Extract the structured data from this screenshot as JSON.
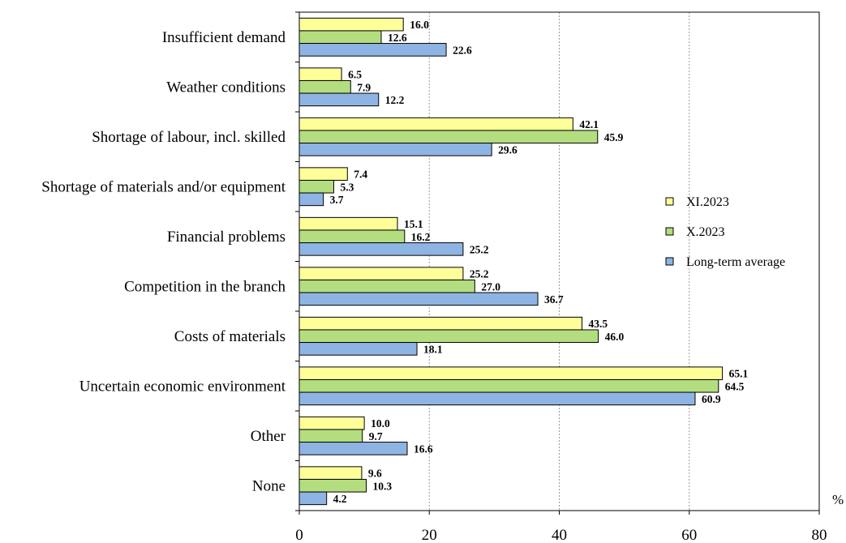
{
  "chart_data": {
    "type": "bar",
    "orientation": "horizontal",
    "categories": [
      "Insufficient demand",
      "Weather conditions",
      "Shortage of labour, incl. skilled",
      "Shortage of materials and/or equipment",
      "Financial problems",
      "Competition in the branch",
      "Costs of materials",
      "Uncertain economic environment",
      "Other",
      "None"
    ],
    "series": [
      {
        "name": "XI.2023",
        "color": "#ffff99",
        "values": [
          16.0,
          6.5,
          42.1,
          7.4,
          15.1,
          25.2,
          43.5,
          65.1,
          10.0,
          9.6
        ],
        "labels": [
          "16.0",
          "6.5",
          "42.1",
          "7.4",
          "15.1",
          "25.2",
          "43.5",
          "65.1",
          "10.0",
          "9.6"
        ]
      },
      {
        "name": "X.2023",
        "color": "#b3dd7f",
        "values": [
          12.6,
          7.9,
          45.9,
          5.3,
          16.2,
          27.0,
          46.0,
          64.5,
          9.7,
          10.3
        ],
        "labels": [
          "12.6",
          "7.9",
          "45.9",
          "5.3",
          "16.2",
          "27.0",
          "46.0",
          "64.5",
          "9.7",
          "10.3"
        ]
      },
      {
        "name": "Long-term average",
        "color": "#8eb4e3",
        "values": [
          22.6,
          12.2,
          29.6,
          3.7,
          25.2,
          36.7,
          18.1,
          60.9,
          16.6,
          4.2
        ],
        "labels": [
          "22.6",
          "12.2",
          "29.6",
          "3.7",
          "25.2",
          "36.7",
          "18.1",
          "60.9",
          "16.6",
          "4.2"
        ]
      }
    ],
    "xlim": [
      0,
      80
    ],
    "xticks": [
      "0",
      "20",
      "40",
      "60",
      "80"
    ],
    "xticks_values": [
      0,
      20,
      40,
      60,
      80
    ],
    "unit": "%",
    "grid": "vertical dashed",
    "legend_position": "right"
  }
}
